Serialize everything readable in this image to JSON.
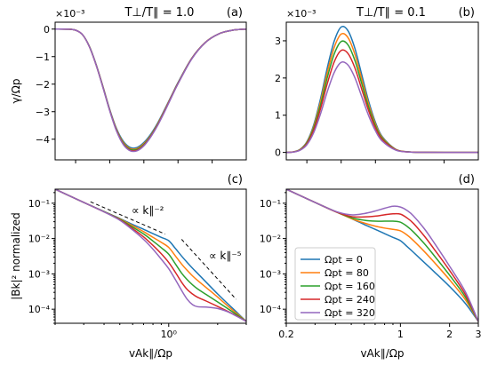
{
  "chart_data": [
    {
      "panel": "(a)",
      "type": "line",
      "title": "T⊥/T∥ = 1.0",
      "ylabel": "γ/Ωp",
      "y_multiplier": "×10⁻³",
      "xscale": "linear",
      "xlim": [
        0.2,
        3.0
      ],
      "ylim": [
        -4.75,
        0.25
      ],
      "yticks": [
        0,
        -1,
        -2,
        -3,
        -4
      ],
      "ytick_labels": [
        "0",
        "−1",
        "−2",
        "−3",
        "−4"
      ],
      "x": [
        0.2,
        0.4,
        0.5,
        0.6,
        0.7,
        0.8,
        0.9,
        1.0,
        1.1,
        1.2,
        1.3,
        1.4,
        1.5,
        1.6,
        1.7,
        1.8,
        1.9,
        2.0,
        2.2,
        2.4,
        2.6,
        2.8,
        3.0
      ],
      "series": [
        {
          "name": "Ωpt = 0",
          "values": [
            0,
            -0.005,
            -0.04,
            -0.2,
            -0.62,
            -1.28,
            -2.08,
            -2.92,
            -3.62,
            -4.08,
            -4.3,
            -4.3,
            -4.12,
            -3.82,
            -3.42,
            -2.94,
            -2.44,
            -1.94,
            -1.06,
            -0.48,
            -0.17,
            -0.04,
            0
          ]
        },
        {
          "name": "Ωpt = 80",
          "values": [
            0,
            -0.005,
            -0.04,
            -0.2,
            -0.62,
            -1.29,
            -2.09,
            -2.94,
            -3.65,
            -4.12,
            -4.34,
            -4.34,
            -4.16,
            -3.86,
            -3.45,
            -2.97,
            -2.46,
            -1.96,
            -1.07,
            -0.48,
            -0.17,
            -0.04,
            0
          ]
        },
        {
          "name": "Ωpt = 160",
          "values": [
            0,
            -0.005,
            -0.04,
            -0.2,
            -0.62,
            -1.29,
            -2.1,
            -2.95,
            -3.67,
            -4.15,
            -4.37,
            -4.37,
            -4.19,
            -3.88,
            -3.47,
            -2.99,
            -2.47,
            -1.97,
            -1.08,
            -0.49,
            -0.17,
            -0.04,
            0
          ]
        },
        {
          "name": "Ωpt = 240",
          "values": [
            0,
            -0.005,
            -0.04,
            -0.2,
            -0.63,
            -1.3,
            -2.11,
            -2.96,
            -3.69,
            -4.18,
            -4.4,
            -4.4,
            -4.22,
            -3.9,
            -3.49,
            -3.0,
            -2.48,
            -1.98,
            -1.08,
            -0.49,
            -0.17,
            -0.04,
            0
          ]
        },
        {
          "name": "Ωpt = 320",
          "values": [
            0,
            -0.005,
            -0.04,
            -0.2,
            -0.63,
            -1.3,
            -2.12,
            -2.97,
            -3.71,
            -4.2,
            -4.42,
            -4.42,
            -4.24,
            -3.92,
            -3.51,
            -3.02,
            -2.5,
            -1.99,
            -1.09,
            -0.49,
            -0.17,
            -0.04,
            0
          ]
        }
      ]
    },
    {
      "panel": "(b)",
      "type": "line",
      "title": "T⊥/T∥ = 0.1",
      "ylabel": "",
      "y_multiplier": "×10⁻³",
      "xscale": "linear",
      "xlim": [
        0.2,
        3.0
      ],
      "ylim": [
        -0.2,
        3.5
      ],
      "yticks": [
        0,
        1,
        2,
        3
      ],
      "ytick_labels": [
        "0",
        "1",
        "2",
        "3"
      ],
      "x": [
        0.2,
        0.3,
        0.4,
        0.5,
        0.6,
        0.7,
        0.8,
        0.9,
        1.0,
        1.1,
        1.2,
        1.3,
        1.4,
        1.5,
        1.6,
        1.8,
        2.0,
        2.2,
        2.5,
        3.0
      ],
      "shape": [
        0,
        0.004,
        0.024,
        0.085,
        0.22,
        0.43,
        0.68,
        0.89,
        1.0,
        0.97,
        0.83,
        0.62,
        0.41,
        0.24,
        0.125,
        0.024,
        0.004,
        0.001,
        0,
        0
      ],
      "series": [
        {
          "name": "Ωpt = 0",
          "peak": 3.37
        },
        {
          "name": "Ωpt = 80",
          "peak": 3.18
        },
        {
          "name": "Ωpt = 160",
          "peak": 2.98
        },
        {
          "name": "Ωpt = 240",
          "peak": 2.74
        },
        {
          "name": "Ωpt = 320",
          "peak": 2.42
        }
      ]
    },
    {
      "panel": "(c)",
      "type": "line",
      "ylabel": "|Bk|² normalized",
      "xlabel": "vAk∥/Ωp",
      "xscale": "log",
      "yscale": "log",
      "xlim": [
        0.2,
        3.0
      ],
      "ylim": [
        4e-05,
        0.25
      ],
      "xticks": [
        1
      ],
      "xtick_labels": [
        "10⁰"
      ],
      "yticks": [
        0.1,
        0.01,
        0.001,
        0.0001
      ],
      "ytick_labels": [
        "10⁻¹",
        "10⁻²",
        "10⁻³",
        "10⁻⁴"
      ],
      "annotations": [
        "∝ k∥⁻²",
        "∝ k∥⁻⁵"
      ],
      "reference_lines": [
        {
          "label": "∝ k∥⁻²",
          "x": [
            0.33,
            0.95
          ],
          "y": [
            0.11,
            0.0134
          ]
        },
        {
          "label": "∝ k∥⁻⁵",
          "x": [
            1.2,
            2.6
          ],
          "y": [
            0.0095,
            0.00019
          ]
        }
      ],
      "x": [
        0.2,
        0.3,
        0.4,
        0.5,
        0.6,
        0.7,
        0.8,
        0.9,
        1.0,
        1.1,
        1.2,
        1.3,
        1.4,
        1.5,
        1.7,
        2.0,
        2.3,
        2.6,
        3.0
      ],
      "series": [
        {
          "name": "Ωpt = 0",
          "values": [
            0.25,
            0.105,
            0.058,
            0.037,
            0.025,
            0.0183,
            0.0138,
            0.0108,
            0.0087,
            0.0052,
            0.0032,
            0.0021,
            0.00145,
            0.00105,
            0.00058,
            0.00027,
            0.000145,
            8.5e-05,
            4.5e-05
          ]
        },
        {
          "name": "Ωpt = 80",
          "values": [
            0.25,
            0.105,
            0.058,
            0.036,
            0.023,
            0.0157,
            0.0108,
            0.0078,
            0.0056,
            0.0032,
            0.0019,
            0.00125,
            0.00088,
            0.00066,
            0.00041,
            0.00022,
            0.000125,
            7.8e-05,
            4.5e-05
          ]
        },
        {
          "name": "Ωpt = 160",
          "values": [
            0.25,
            0.105,
            0.058,
            0.035,
            0.021,
            0.0135,
            0.0085,
            0.0055,
            0.0036,
            0.0019,
            0.00105,
            0.00068,
            0.00049,
            0.00038,
            0.00026,
            0.00016,
            0.000105,
            7.2e-05,
            4.5e-05
          ]
        },
        {
          "name": "Ωpt = 240",
          "values": [
            0.25,
            0.105,
            0.057,
            0.034,
            0.019,
            0.0112,
            0.0064,
            0.0037,
            0.0021,
            0.0011,
            0.00058,
            0.00036,
            0.00027,
            0.00022,
            0.00017,
            0.00012,
            8.8e-05,
            6.6e-05,
            4.5e-05
          ]
        },
        {
          "name": "Ωpt = 320",
          "values": [
            0.25,
            0.105,
            0.057,
            0.033,
            0.0175,
            0.0095,
            0.005,
            0.0026,
            0.0014,
            0.00068,
            0.00034,
            0.00019,
            0.000135,
            0.000118,
            0.000115,
            0.000105,
            8.5e-05,
            6.4e-05,
            4.5e-05
          ]
        }
      ]
    },
    {
      "panel": "(d)",
      "type": "line",
      "xlabel": "vAk∥/Ωp",
      "xscale": "log",
      "yscale": "log",
      "xlim": [
        0.2,
        3.0
      ],
      "ylim": [
        4e-05,
        0.25
      ],
      "xticks": [
        0.2,
        1,
        2,
        3
      ],
      "xtick_labels": [
        "0.2",
        "1",
        "2",
        "3"
      ],
      "yticks": [
        0.1,
        0.01,
        0.001,
        0.0001
      ],
      "ytick_labels": [
        "10⁻¹",
        "10⁻²",
        "10⁻³",
        "10⁻⁴"
      ],
      "legend": "center-left",
      "x": [
        0.2,
        0.3,
        0.4,
        0.5,
        0.6,
        0.7,
        0.8,
        0.9,
        1.0,
        1.1,
        1.2,
        1.4,
        1.6,
        2.0,
        2.5,
        3.0
      ],
      "series": [
        {
          "name": "Ωpt = 0",
          "values": [
            0.25,
            0.105,
            0.058,
            0.037,
            0.025,
            0.0183,
            0.0138,
            0.0108,
            0.0087,
            0.0059,
            0.0041,
            0.0021,
            0.00118,
            0.00044,
            0.000145,
            4.5e-05
          ]
        },
        {
          "name": "Ωpt = 80",
          "values": [
            0.25,
            0.105,
            0.058,
            0.037,
            0.0275,
            0.0225,
            0.0198,
            0.0182,
            0.0165,
            0.0125,
            0.0088,
            0.0043,
            0.0022,
            0.00068,
            0.000185,
            4.5e-05
          ]
        },
        {
          "name": "Ωpt = 160",
          "values": [
            0.25,
            0.105,
            0.058,
            0.039,
            0.033,
            0.031,
            0.031,
            0.031,
            0.029,
            0.022,
            0.0155,
            0.0072,
            0.0034,
            0.00092,
            0.00022,
            4.5e-05
          ]
        },
        {
          "name": "Ωpt = 240",
          "values": [
            0.25,
            0.105,
            0.058,
            0.042,
            0.041,
            0.043,
            0.047,
            0.05,
            0.049,
            0.038,
            0.027,
            0.0118,
            0.0052,
            0.00125,
            0.00026,
            4.5e-05
          ]
        },
        {
          "name": "Ωpt = 320",
          "values": [
            0.25,
            0.105,
            0.059,
            0.047,
            0.051,
            0.06,
            0.072,
            0.082,
            0.078,
            0.062,
            0.044,
            0.019,
            0.0079,
            0.00165,
            0.00031,
            4.5e-05
          ]
        }
      ]
    }
  ],
  "series_colors": [
    "#1f77b4",
    "#ff7f0e",
    "#2ca02c",
    "#d62728",
    "#9467bd"
  ]
}
